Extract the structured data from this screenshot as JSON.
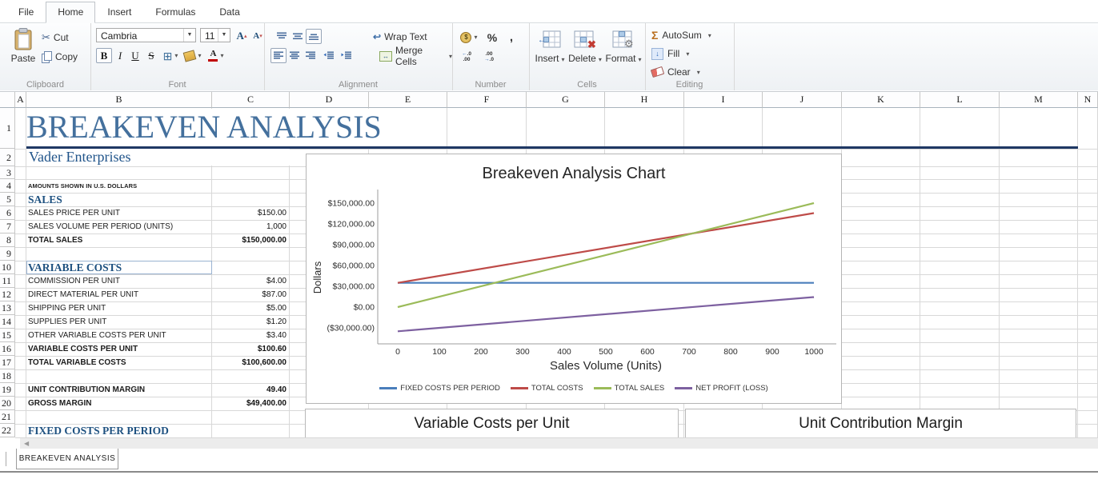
{
  "ribbon": {
    "tabs": [
      {
        "label": "File",
        "active": false
      },
      {
        "label": "Home",
        "active": true
      },
      {
        "label": "Insert",
        "active": false
      },
      {
        "label": "Formulas",
        "active": false
      },
      {
        "label": "Data",
        "active": false
      }
    ],
    "clipboard": {
      "label": "Clipboard",
      "paste": "Paste",
      "cut": "Cut",
      "copy": "Copy"
    },
    "font": {
      "label": "Font",
      "font_name": "Cambria",
      "font_size": "11",
      "icons": [
        "grow-font",
        "shrink-font",
        "bold",
        "italic",
        "underline",
        "strikethrough",
        "borders",
        "fill-color",
        "font-color"
      ]
    },
    "alignment": {
      "label": "Alignment",
      "wrap_text": "Wrap Text",
      "merge_cells": "Merge Cells",
      "icons": [
        "align-top",
        "align-middle",
        "align-bottom",
        "align-left",
        "align-center",
        "align-right",
        "decrease-indent",
        "increase-indent"
      ]
    },
    "number": {
      "label": "Number",
      "icons": [
        "accounting-number-format",
        "percent-style",
        "comma-style",
        "increase-decimal",
        "decrease-decimal"
      ]
    },
    "cells": {
      "label": "Cells",
      "insert": "Insert",
      "delete": "Delete",
      "format": "Format"
    },
    "editing": {
      "label": "Editing",
      "autosum": "AutoSum",
      "fill": "Fill",
      "clear": "Clear"
    }
  },
  "sheet": {
    "columns": [
      "",
      "A",
      "B",
      "C",
      "D",
      "E",
      "F",
      "G",
      "H",
      "I",
      "J",
      "K",
      "L",
      "M",
      "N"
    ],
    "visible_row_count": 22,
    "title": "BREAKEVEN ANALYSIS",
    "subtitle": "Vader Enterprises",
    "tab_name": "BREAKEVEN ANALYSIS",
    "rows": [
      {
        "n": 4,
        "label": "AMOUNTS SHOWN IN U.S. DOLLARS",
        "value": "",
        "style": "note"
      },
      {
        "n": 5,
        "label": "SALES",
        "value": "",
        "style": "heading"
      },
      {
        "n": 6,
        "label": "SALES PRICE PER UNIT",
        "value": "$150.00",
        "style": "item"
      },
      {
        "n": 7,
        "label": "SALES VOLUME PER PERIOD (UNITS)",
        "value": "1,000",
        "style": "item"
      },
      {
        "n": 8,
        "label": "TOTAL SALES",
        "value": "$150,000.00",
        "style": "total"
      },
      {
        "n": 10,
        "label": "VARIABLE COSTS",
        "value": "",
        "style": "heading-boxed"
      },
      {
        "n": 11,
        "label": "COMMISSION PER UNIT",
        "value": "$4.00",
        "style": "item"
      },
      {
        "n": 12,
        "label": "DIRECT MATERIAL PER UNIT",
        "value": "$87.00",
        "style": "item"
      },
      {
        "n": 13,
        "label": "SHIPPING PER UNIT",
        "value": "$5.00",
        "style": "item"
      },
      {
        "n": 14,
        "label": "SUPPLIES PER UNIT",
        "value": "$1.20",
        "style": "item"
      },
      {
        "n": 15,
        "label": "OTHER VARIABLE COSTS PER UNIT",
        "value": "$3.40",
        "style": "item"
      },
      {
        "n": 16,
        "label": "VARIABLE COSTS PER UNIT",
        "value": "$100.60",
        "style": "total"
      },
      {
        "n": 17,
        "label": "TOTAL VARIABLE COSTS",
        "value": "$100,600.00",
        "style": "total"
      },
      {
        "n": 19,
        "label": "UNIT CONTRIBUTION MARGIN",
        "value": "49.40",
        "style": "total"
      },
      {
        "n": 20,
        "label": "GROSS MARGIN",
        "value": "$49,400.00",
        "style": "total"
      },
      {
        "n": 22,
        "label": "FIXED COSTS PER PERIOD",
        "value": "",
        "style": "heading"
      }
    ]
  },
  "chart_data": {
    "type": "line",
    "title": "Breakeven Analysis Chart",
    "xlabel": "Sales Volume (Units)",
    "ylabel": "Dollars",
    "xlim": [
      0,
      1000
    ],
    "ylim": [
      -50000,
      165000
    ],
    "grid": false,
    "legend_position": "bottom",
    "x": [
      0,
      1000
    ],
    "x_ticks": [
      0,
      100,
      200,
      300,
      400,
      500,
      600,
      700,
      800,
      900,
      1000
    ],
    "y_ticks": [
      {
        "label": "$150,000.00",
        "value": 150000
      },
      {
        "label": "$120,000.00",
        "value": 120000
      },
      {
        "label": "$90,000.00",
        "value": 90000
      },
      {
        "label": "$60,000.00",
        "value": 60000
      },
      {
        "label": "$30,000.00",
        "value": 30000
      },
      {
        "label": "$0.00",
        "value": 0
      },
      {
        "label": "($30,000.00)",
        "value": -30000
      }
    ],
    "series": [
      {
        "name": "FIXED COSTS PER PERIOD",
        "color": "#4a7ebb",
        "values": [
          35000,
          35000
        ]
      },
      {
        "name": "TOTAL COSTS",
        "color": "#be4b48",
        "values": [
          35000,
          135600
        ]
      },
      {
        "name": "TOTAL SALES",
        "color": "#9bbb59",
        "values": [
          0,
          150000
        ]
      },
      {
        "name": "NET PROFIT (LOSS)",
        "color": "#7d60a0",
        "values": [
          -35000,
          14400
        ]
      }
    ]
  },
  "secondary_charts": [
    {
      "title": "Variable Costs per Unit"
    },
    {
      "title": "Unit Contribution Margin"
    }
  ]
}
